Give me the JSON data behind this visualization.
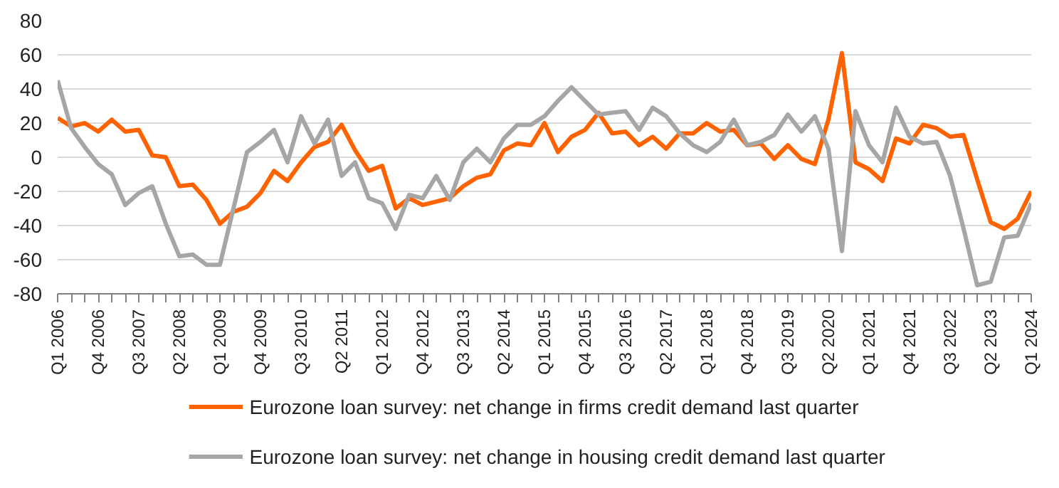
{
  "chart_data": {
    "type": "line",
    "categories": [
      "Q1 2006",
      null,
      null,
      "Q4 2006",
      null,
      null,
      "Q3 2007",
      null,
      null,
      "Q2 2008",
      null,
      null,
      "Q1 2009",
      null,
      null,
      "Q4 2009",
      null,
      null,
      "Q3 2010",
      null,
      null,
      "Q2 2011",
      null,
      null,
      "Q1 2012",
      null,
      null,
      "Q4 2012",
      null,
      null,
      "Q3 2013",
      null,
      null,
      "Q2 2014",
      null,
      null,
      "Q1 2015",
      null,
      null,
      "Q4 2015",
      null,
      null,
      "Q3 2016",
      null,
      null,
      "Q2 2017",
      null,
      null,
      "Q1 2018",
      null,
      null,
      "Q4 2018",
      null,
      null,
      "Q3 2019",
      null,
      null,
      "Q2 2020",
      null,
      null,
      "Q1 2021",
      null,
      null,
      "Q4 2021",
      null,
      null,
      "Q3 2022",
      null,
      null,
      "Q2 2023",
      null,
      null,
      "Q1 2024"
    ],
    "series": [
      {
        "name": "Eurozone loan survey: net change in firms credit demand last quarter",
        "color": "#ff6200",
        "values": [
          23,
          18,
          20,
          15,
          22,
          15,
          16,
          1,
          0,
          -17,
          -16,
          -25,
          -39,
          -32,
          -29,
          -21,
          -8,
          -14,
          -3,
          6,
          9,
          19,
          4,
          -8,
          -5,
          -30,
          -24,
          -28,
          -26,
          -24,
          -17,
          -12,
          -10,
          4,
          8,
          7,
          20,
          3,
          12,
          16,
          26,
          14,
          15,
          7,
          12,
          5,
          14,
          14,
          20,
          15,
          16,
          7,
          8,
          -1,
          7,
          -1,
          -4,
          22,
          61,
          -3,
          -7,
          -14,
          11,
          8,
          19,
          17,
          12,
          13,
          -13,
          -38,
          -42,
          -36,
          -20
        ]
      },
      {
        "name": "Eurozone loan survey: net change in housing credit demand last quarter",
        "color": "#a6a6a6",
        "values": [
          45,
          17,
          6,
          -4,
          -10,
          -28,
          -21,
          -17,
          -39,
          -58,
          -57,
          -63,
          -63,
          -30,
          3,
          9,
          16,
          -3,
          24,
          8,
          22,
          -11,
          -3,
          -24,
          -27,
          -42,
          -22,
          -24,
          -11,
          -25,
          -3,
          5,
          -3,
          11,
          19,
          19,
          24,
          33,
          41,
          33,
          25,
          26,
          27,
          16,
          29,
          24,
          14,
          7,
          3,
          9,
          22,
          7,
          9,
          13,
          25,
          15,
          24,
          5,
          -55,
          27,
          7,
          -3,
          29,
          12,
          8,
          9,
          -11,
          -42,
          -75,
          -73,
          -47,
          -46,
          -27
        ]
      }
    ],
    "ylim": [
      -80,
      80
    ],
    "yticks": [
      -80,
      -60,
      -40,
      -20,
      0,
      20,
      40,
      60,
      80
    ],
    "grid": "y",
    "legend": "bottom"
  }
}
